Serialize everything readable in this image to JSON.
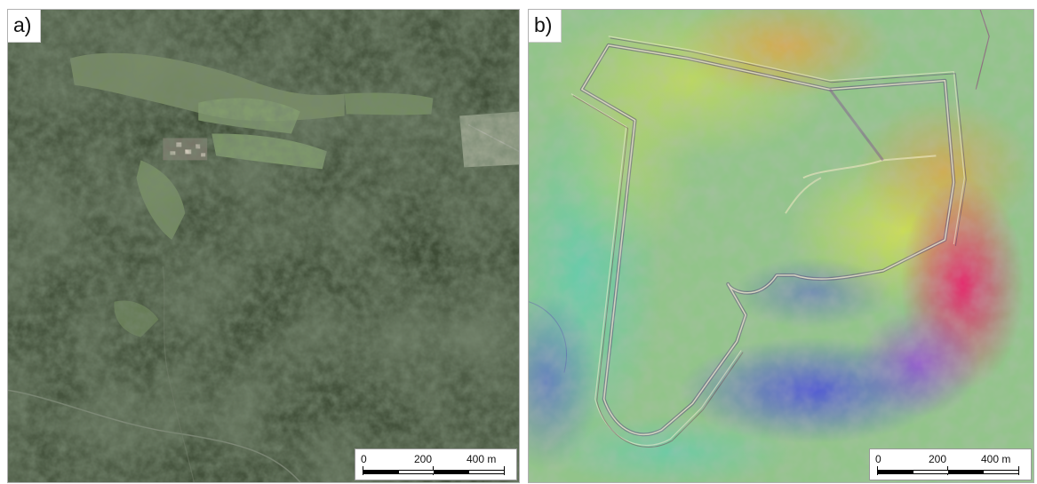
{
  "panels": [
    {
      "label": "a)",
      "kind": "aerial orthophoto",
      "scalebar": {
        "ticks": [
          "0",
          "200",
          "400 m"
        ]
      }
    },
    {
      "label": "b)",
      "kind": "shaded relief (multi-directional colour hillshade)",
      "scalebar": {
        "ticks": [
          "0",
          "200",
          "400 m"
        ]
      }
    }
  ],
  "colors": {
    "forest_dark": "#3b4a33",
    "meadow": "#7f9a6a",
    "relief_green": "#8ccf7a",
    "relief_magenta": "#e0307a",
    "relief_blue": "#5a6ad8",
    "relief_orange": "#e0a040"
  }
}
